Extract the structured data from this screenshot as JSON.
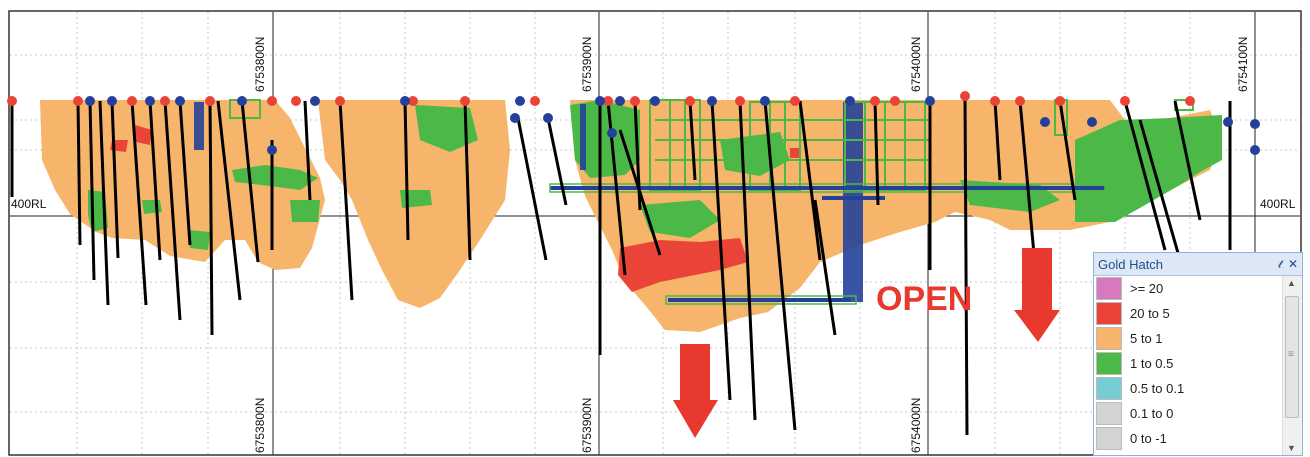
{
  "section": {
    "northing_labels_top": [
      "6753800N",
      "6753900N",
      "6754000N",
      "6754100N"
    ],
    "northing_labels_bottom": [
      "6753800N",
      "6753900N",
      "6754000N"
    ],
    "rl_left": "400RL",
    "rl_right": "400RL",
    "annotation": "OPEN"
  },
  "legend": {
    "title": "Gold Hatch",
    "pin_icon": "pin-icon",
    "close_icon": "close-icon",
    "items": [
      {
        "label": ">= 20",
        "color": "#d879c0"
      },
      {
        "label": "20 to 5",
        "color": "#ea4338"
      },
      {
        "label": "5 to 1",
        "color": "#f7b56b"
      },
      {
        "label": "1 to 0.5",
        "color": "#4cb848"
      },
      {
        "label": "0.5 to 0.1",
        "color": "#77cdd3"
      },
      {
        "label": "0.1 to 0",
        "color": "#d4d4d4"
      },
      {
        "label": "0 to -1",
        "color": "#d4d4d4"
      }
    ]
  },
  "colors": {
    "orange": "#f7b56b",
    "green": "#4cb848",
    "red": "#ea4338",
    "blue": "#24419a",
    "arrow": "#e8392e"
  }
}
